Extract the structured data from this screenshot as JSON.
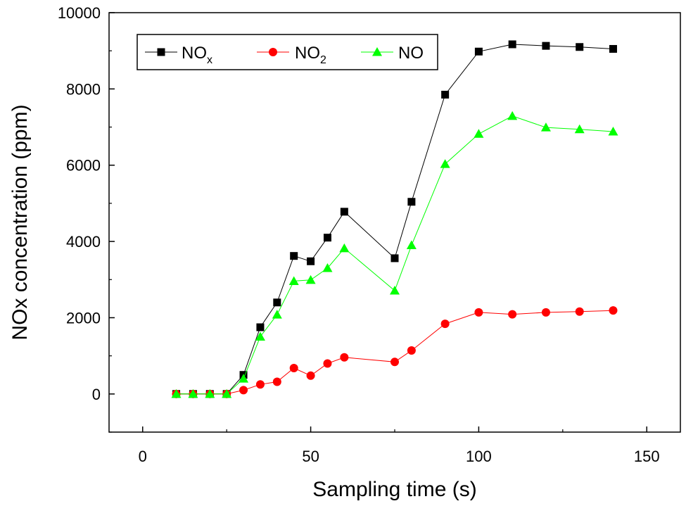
{
  "chart_data": {
    "type": "line",
    "title": "",
    "xlabel": "Sampling time (s)",
    "ylabel": "NOx concentration (ppm)",
    "xlim": [
      -10,
      160
    ],
    "ylim": [
      -1000,
      10000
    ],
    "xticks": [
      0,
      50,
      100,
      150
    ],
    "yticks": [
      0,
      2000,
      4000,
      6000,
      8000,
      10000
    ],
    "xtick_labels": [
      "0",
      "50",
      "100",
      "150"
    ],
    "ytick_labels": [
      "0",
      "2000",
      "4000",
      "6000",
      "8000",
      "10000"
    ],
    "legend_position": "top-left",
    "series": [
      {
        "name": "NOx",
        "legend_main": "NO",
        "legend_sub": "x",
        "color": "#000000",
        "marker": "square",
        "x": [
          10,
          15,
          20,
          25,
          30,
          35,
          40,
          45,
          50,
          55,
          60,
          75,
          80,
          90,
          100,
          110,
          120,
          130,
          140
        ],
        "y": [
          0,
          0,
          0,
          0,
          500,
          1750,
          2400,
          3620,
          3480,
          4100,
          4780,
          3560,
          5040,
          7850,
          8980,
          9170,
          9130,
          9100,
          9050
        ]
      },
      {
        "name": "NO2",
        "legend_main": "NO",
        "legend_sub": "2",
        "color": "#ff0000",
        "marker": "circle",
        "x": [
          10,
          15,
          20,
          25,
          30,
          35,
          40,
          45,
          50,
          55,
          60,
          75,
          80,
          90,
          100,
          110,
          120,
          130,
          140
        ],
        "y": [
          0,
          0,
          0,
          0,
          100,
          250,
          320,
          680,
          480,
          800,
          960,
          840,
          1140,
          1840,
          2140,
          2090,
          2140,
          2160,
          2190
        ]
      },
      {
        "name": "NO",
        "legend_main": "NO",
        "legend_sub": "",
        "color": "#00ff00",
        "marker": "triangle",
        "x": [
          10,
          15,
          20,
          25,
          30,
          35,
          40,
          45,
          50,
          55,
          60,
          75,
          80,
          90,
          100,
          110,
          120,
          130,
          140
        ],
        "y": [
          0,
          0,
          0,
          0,
          400,
          1500,
          2080,
          2960,
          2990,
          3300,
          3820,
          2710,
          3900,
          6030,
          6820,
          7290,
          6990,
          6940,
          6880
        ]
      }
    ]
  }
}
